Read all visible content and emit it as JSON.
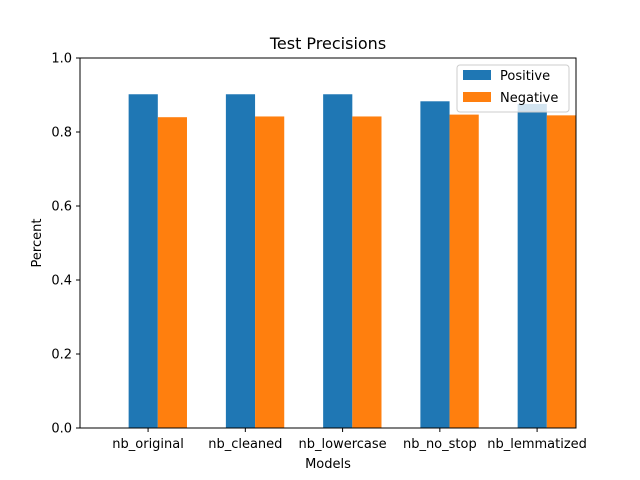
{
  "chart_data": {
    "type": "bar",
    "title": "Test Precisions",
    "xlabel": "Models",
    "ylabel": "Percent",
    "categories": [
      "nb_original",
      "nb_cleaned",
      "nb_lowercase",
      "nb_no_stop",
      "nb_lemmatized"
    ],
    "series": [
      {
        "name": "Positive",
        "color": "#1f77b4",
        "values": [
          0.902,
          0.902,
          0.902,
          0.883,
          0.876
        ]
      },
      {
        "name": "Negative",
        "color": "#ff7f0e",
        "values": [
          0.84,
          0.842,
          0.842,
          0.847,
          0.845
        ]
      }
    ],
    "ylim": [
      0,
      1.0
    ],
    "yticks": [
      "0.0",
      "0.2",
      "0.4",
      "0.6",
      "0.8",
      "1.0"
    ],
    "grid": false,
    "legend_position": "top-right"
  }
}
